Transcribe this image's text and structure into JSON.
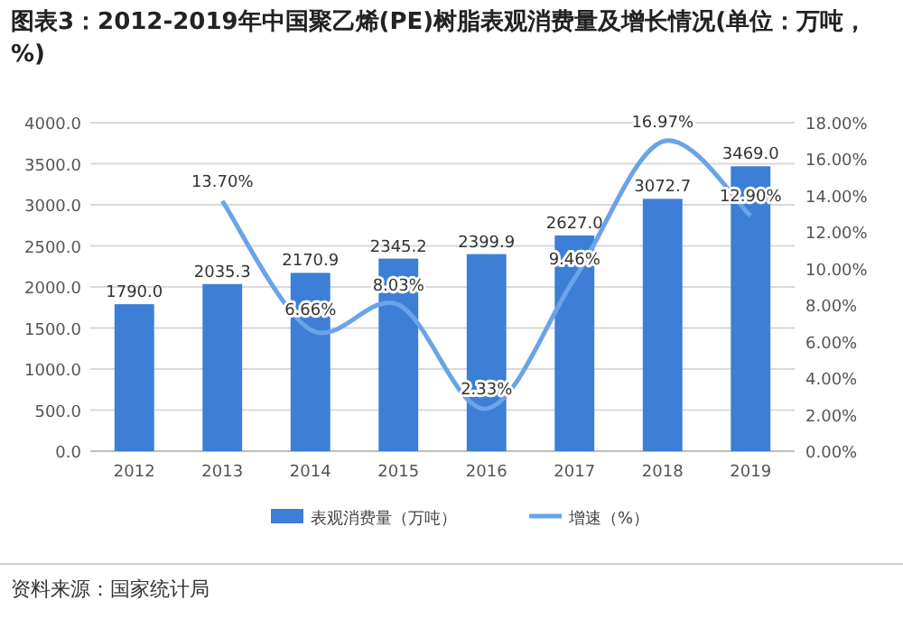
{
  "chart_data": {
    "type": "bar",
    "title": "图表3：2012-2019年中国聚乙烯(PE)树脂表观消费量及增长情况(单位：万吨，%)",
    "categories": [
      "2012",
      "2013",
      "2014",
      "2015",
      "2016",
      "2017",
      "2018",
      "2019"
    ],
    "series": [
      {
        "name": "表观消费量（万吨）",
        "color": "#3d7ed6",
        "values": [
          1790.0,
          2035.3,
          2170.9,
          2345.2,
          2399.9,
          2627.0,
          3072.7,
          3469.0
        ],
        "value_labels": [
          "1790.0",
          "2035.3",
          "2170.9",
          "2345.2",
          "2399.9",
          "2627.0",
          "3072.7",
          "3469.0"
        ]
      },
      {
        "name": "增速（%）",
        "type": "line",
        "axis": "y2",
        "color": "#6aa3e8",
        "values": [
          null,
          13.7,
          6.66,
          8.03,
          2.33,
          9.46,
          16.97,
          12.9
        ],
        "value_labels": [
          null,
          "13.70%",
          "6.66%",
          "8.03%",
          "2.33%",
          "9.46%",
          "16.97%",
          "12.90%"
        ]
      }
    ],
    "ylim": [
      0,
      4000
    ],
    "yticks": [
      {
        "value": 0,
        "label": "0.0"
      },
      {
        "value": 500,
        "label": "500.0"
      },
      {
        "value": 1000,
        "label": "1000.0"
      },
      {
        "value": 1500,
        "label": "1500.0"
      },
      {
        "value": 2000,
        "label": "2000.0"
      },
      {
        "value": 2500,
        "label": "2500.0"
      },
      {
        "value": 3000,
        "label": "3000.0"
      },
      {
        "value": 3500,
        "label": "3500.0"
      },
      {
        "value": 4000,
        "label": "4000.0"
      }
    ],
    "y2lim": [
      0,
      18
    ],
    "y2ticks": [
      {
        "value": 0,
        "label": "0.00%"
      },
      {
        "value": 2,
        "label": "2.00%"
      },
      {
        "value": 4,
        "label": "4.00%"
      },
      {
        "value": 6,
        "label": "6.00%"
      },
      {
        "value": 8,
        "label": "8.00%"
      },
      {
        "value": 10,
        "label": "10.00%"
      },
      {
        "value": 12,
        "label": "12.00%"
      },
      {
        "value": 14,
        "label": "14.00%"
      },
      {
        "value": 16,
        "label": "16.00%"
      },
      {
        "value": 18,
        "label": "18.00%"
      }
    ],
    "grid": "y",
    "legend": "bottom",
    "marker": "none",
    "annotations": [
      "资料来源：国家统计局"
    ]
  }
}
